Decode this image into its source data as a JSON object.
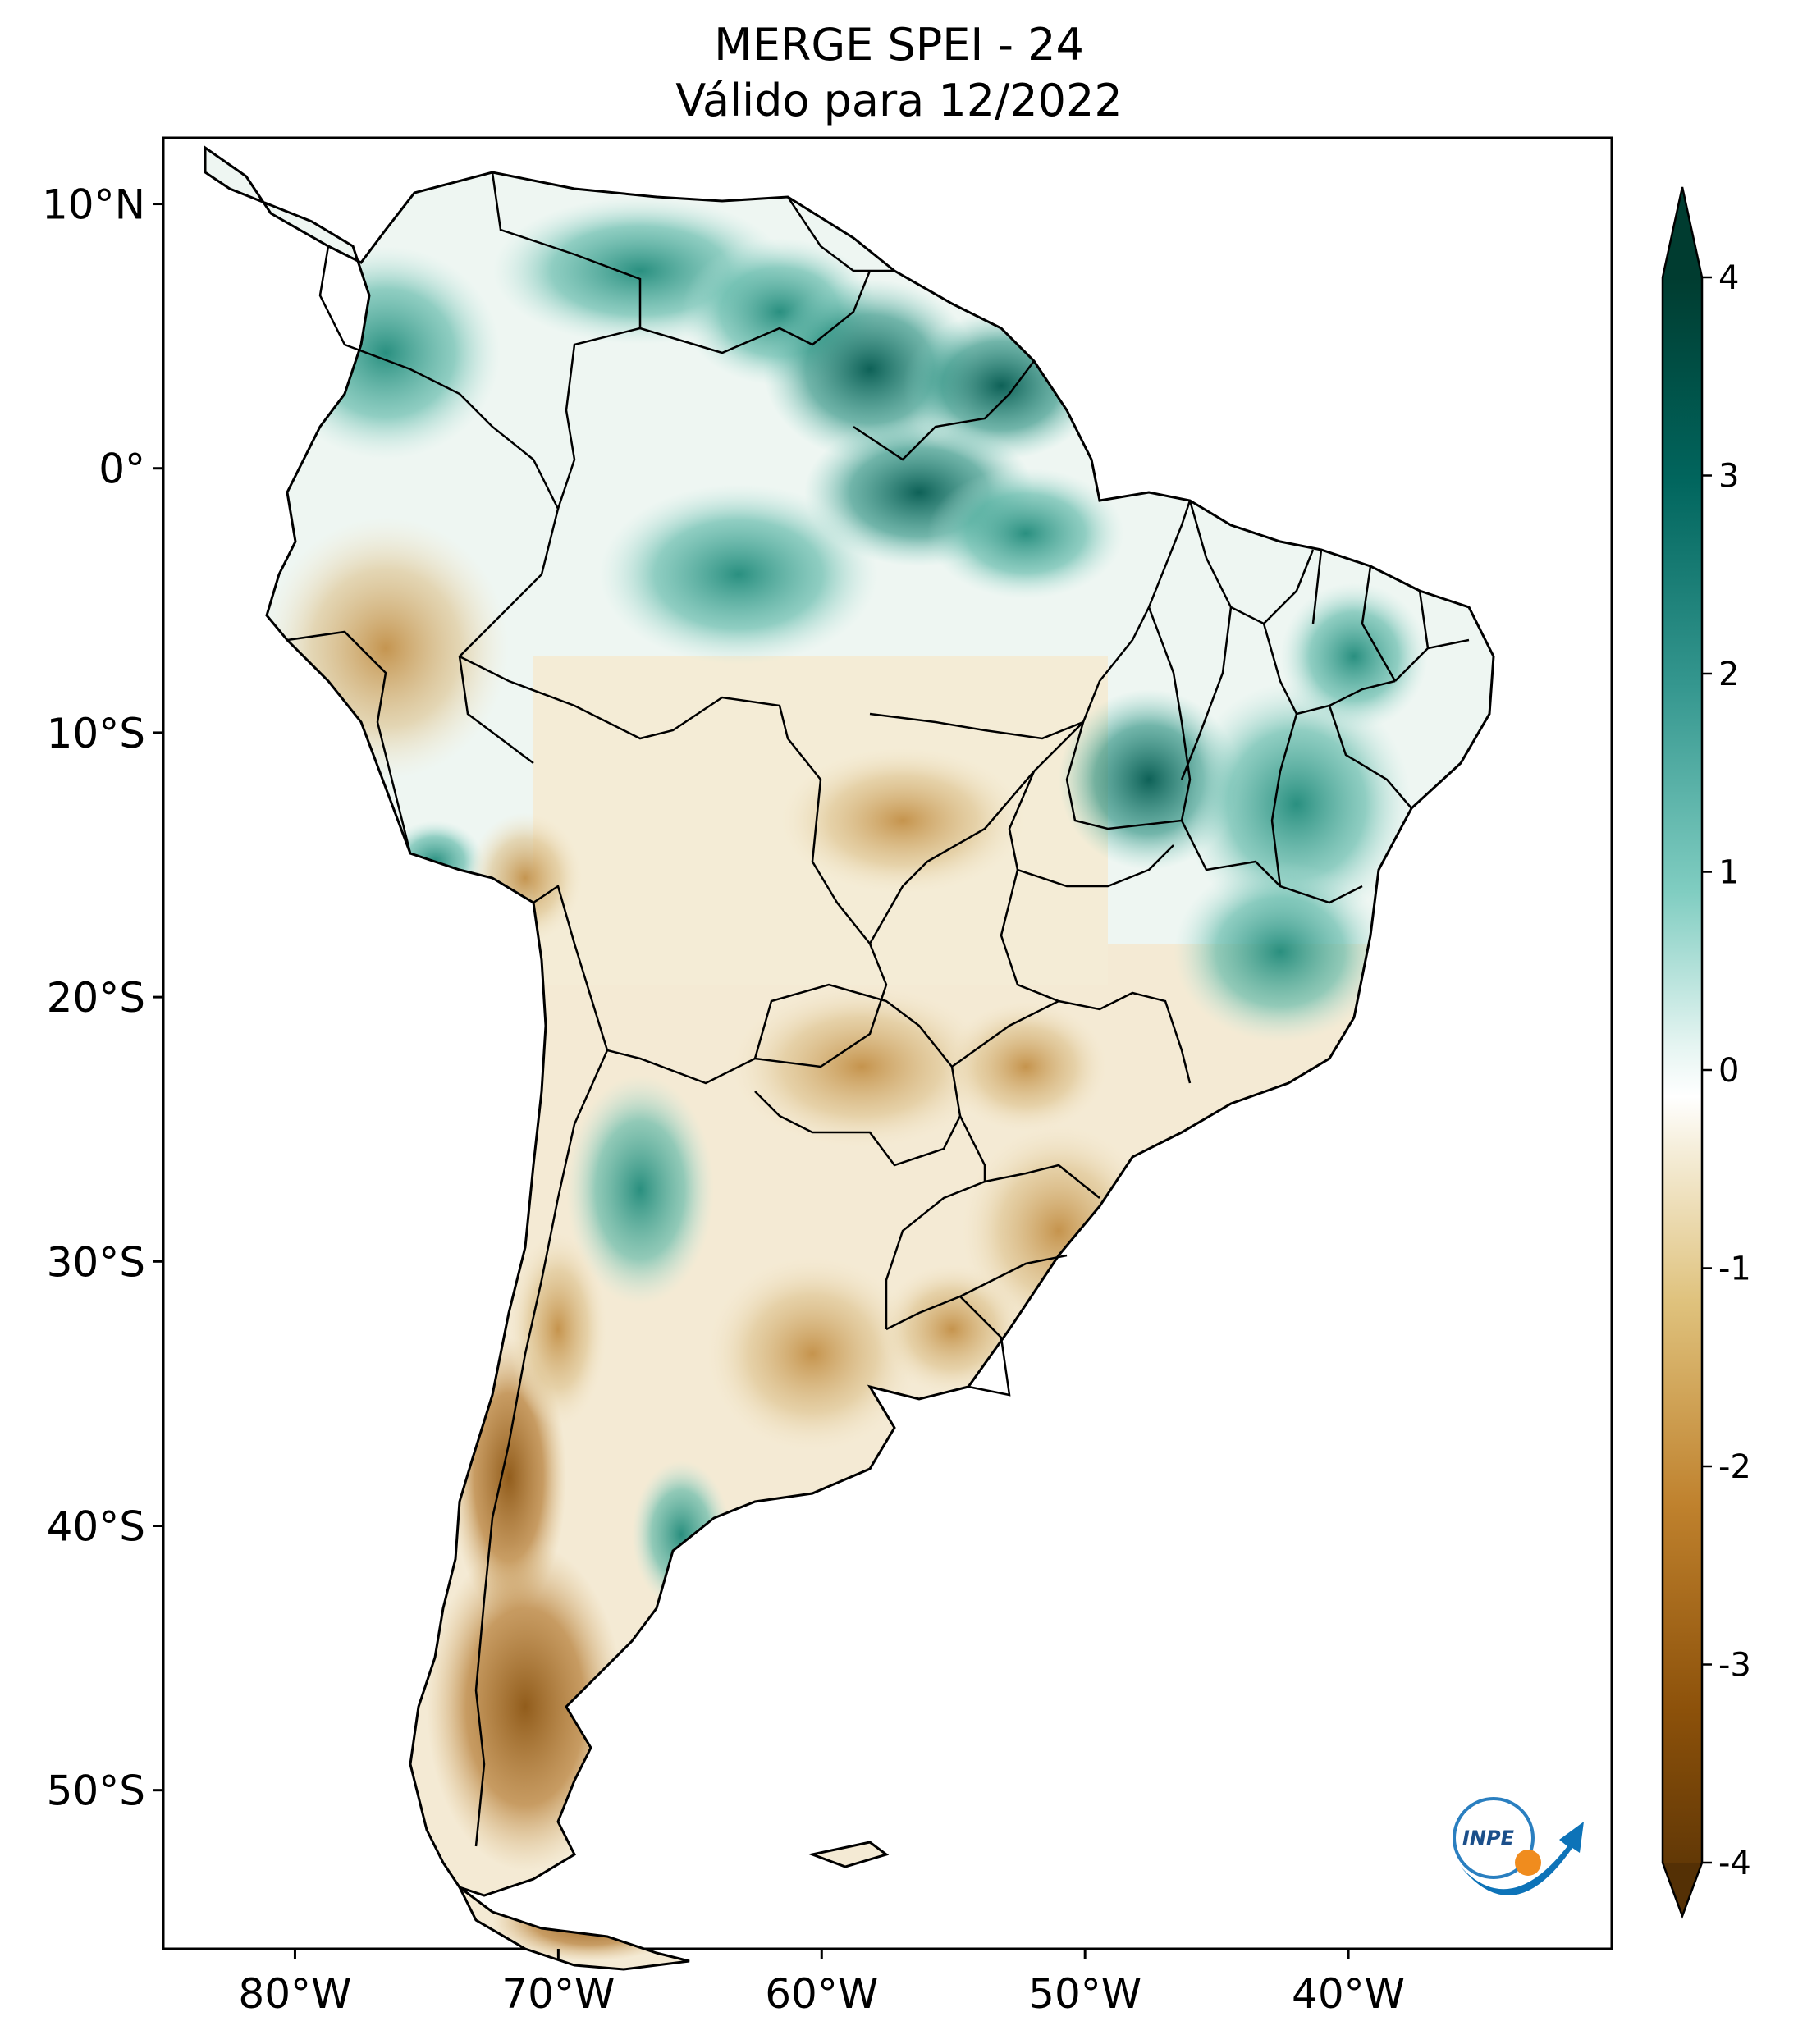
{
  "title": {
    "line1": "MERGE   SPEI - 24",
    "line2": "Válido para 12/2022"
  },
  "map": {
    "region": "South America",
    "variable": "SPEI - 24",
    "dataset": "MERGE",
    "lat_range": [
      -56,
      12.5
    ],
    "lon_range": [
      -85,
      -30
    ],
    "lat_ticks": [
      {
        "value": 10,
        "label": "10°N"
      },
      {
        "value": 0,
        "label": "0°"
      },
      {
        "value": -10,
        "label": "10°S"
      },
      {
        "value": -20,
        "label": "20°S"
      },
      {
        "value": -30,
        "label": "30°S"
      },
      {
        "value": -40,
        "label": "40°S"
      },
      {
        "value": -50,
        "label": "50°S"
      }
    ],
    "lon_ticks": [
      {
        "value": -80,
        "label": "80°W"
      },
      {
        "value": -70,
        "label": "70°W"
      },
      {
        "value": -60,
        "label": "60°W"
      },
      {
        "value": -50,
        "label": "50°W"
      },
      {
        "value": -40,
        "label": "40°W"
      }
    ],
    "wet_anomaly_color": "#2a9a8a",
    "dry_anomaly_color": "#a8661e"
  },
  "colorbar": {
    "min": -4,
    "max": 4,
    "ticks": [
      {
        "value": 4,
        "label": "4"
      },
      {
        "value": 3,
        "label": "3"
      },
      {
        "value": 2,
        "label": "2"
      },
      {
        "value": 1,
        "label": "1"
      },
      {
        "value": 0,
        "label": "0"
      },
      {
        "value": -1,
        "label": "-1"
      },
      {
        "value": -2,
        "label": "-2"
      },
      {
        "value": -3,
        "label": "-3"
      },
      {
        "value": -4,
        "label": "-4"
      }
    ],
    "colors": {
      "top": "#003c30",
      "high": "#35978f",
      "mid": "#ffffff",
      "low": "#bf812d",
      "bottom": "#543005"
    }
  },
  "logo": {
    "text": "INPE",
    "icon": "inpe-logo-icon"
  }
}
